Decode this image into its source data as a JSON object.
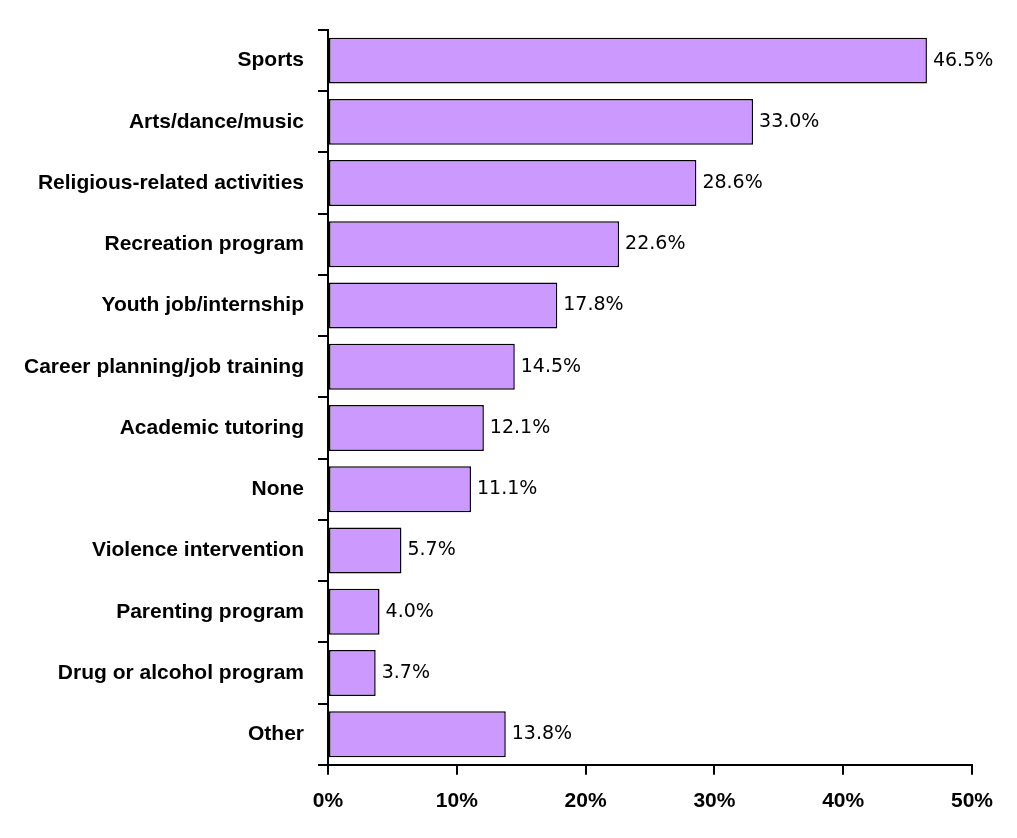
{
  "chart_data": {
    "type": "bar",
    "orientation": "horizontal",
    "categories": [
      "Sports",
      "Arts/dance/music",
      "Religious-related activities",
      "Recreation program",
      "Youth job/internship",
      "Career planning/job training",
      "Academic tutoring",
      "None",
      "Violence intervention",
      "Parenting program",
      "Drug or alcohol program",
      "Other"
    ],
    "values": [
      46.5,
      33.0,
      28.6,
      22.6,
      17.8,
      14.5,
      12.1,
      11.1,
      5.7,
      4.0,
      3.7,
      13.8
    ],
    "value_labels": [
      "46.5%",
      "33.0%",
      "28.6%",
      "22.6%",
      "17.8%",
      "14.5%",
      "12.1%",
      "11.1%",
      "5.7%",
      "4.0%",
      "3.7%",
      "13.8%"
    ],
    "color": "#cc99ff",
    "xlim": [
      0,
      50
    ],
    "xticks": [
      {
        "value": 0,
        "label": "0%"
      },
      {
        "value": 10,
        "label": "10%"
      },
      {
        "value": 20,
        "label": "20%"
      },
      {
        "value": 30,
        "label": "30%"
      },
      {
        "value": 40,
        "label": "40%"
      },
      {
        "value": 50,
        "label": "50%"
      }
    ],
    "grid": false,
    "legend": false
  }
}
